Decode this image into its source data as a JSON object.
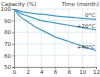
{
  "chart_data": {
    "type": "line",
    "y_label": "Capacity (%)",
    "x_label": "Time (month)",
    "x": [
      0,
      1,
      2,
      3,
      4,
      5,
      6,
      7,
      8,
      9,
      10,
      11,
      12
    ],
    "series": [
      {
        "name": "0°C",
        "color": "#4a9cc2",
        "values": [
          100,
          98,
          97,
          96,
          95.5,
          95,
          94,
          93.5,
          93,
          92.5,
          92,
          91.5,
          91
        ]
      },
      {
        "name": "+20°C",
        "color": "#4a9cc2",
        "values": [
          100,
          96,
          94,
          92,
          90,
          89,
          88,
          87,
          86,
          85,
          84,
          83,
          82
        ]
      },
      {
        "name": "+40°C",
        "color": "#4a9cc2",
        "values": [
          100,
          93,
          89,
          85,
          82,
          79,
          76,
          74,
          72,
          70,
          68,
          66,
          64
        ]
      }
    ],
    "xlim": [
      0,
      12
    ],
    "xticks": [
      0,
      2,
      4,
      6,
      8,
      10,
      12
    ],
    "ylim": [
      50,
      100
    ],
    "yticks": [
      50,
      60,
      70,
      80,
      90,
      100
    ],
    "grid": true
  }
}
